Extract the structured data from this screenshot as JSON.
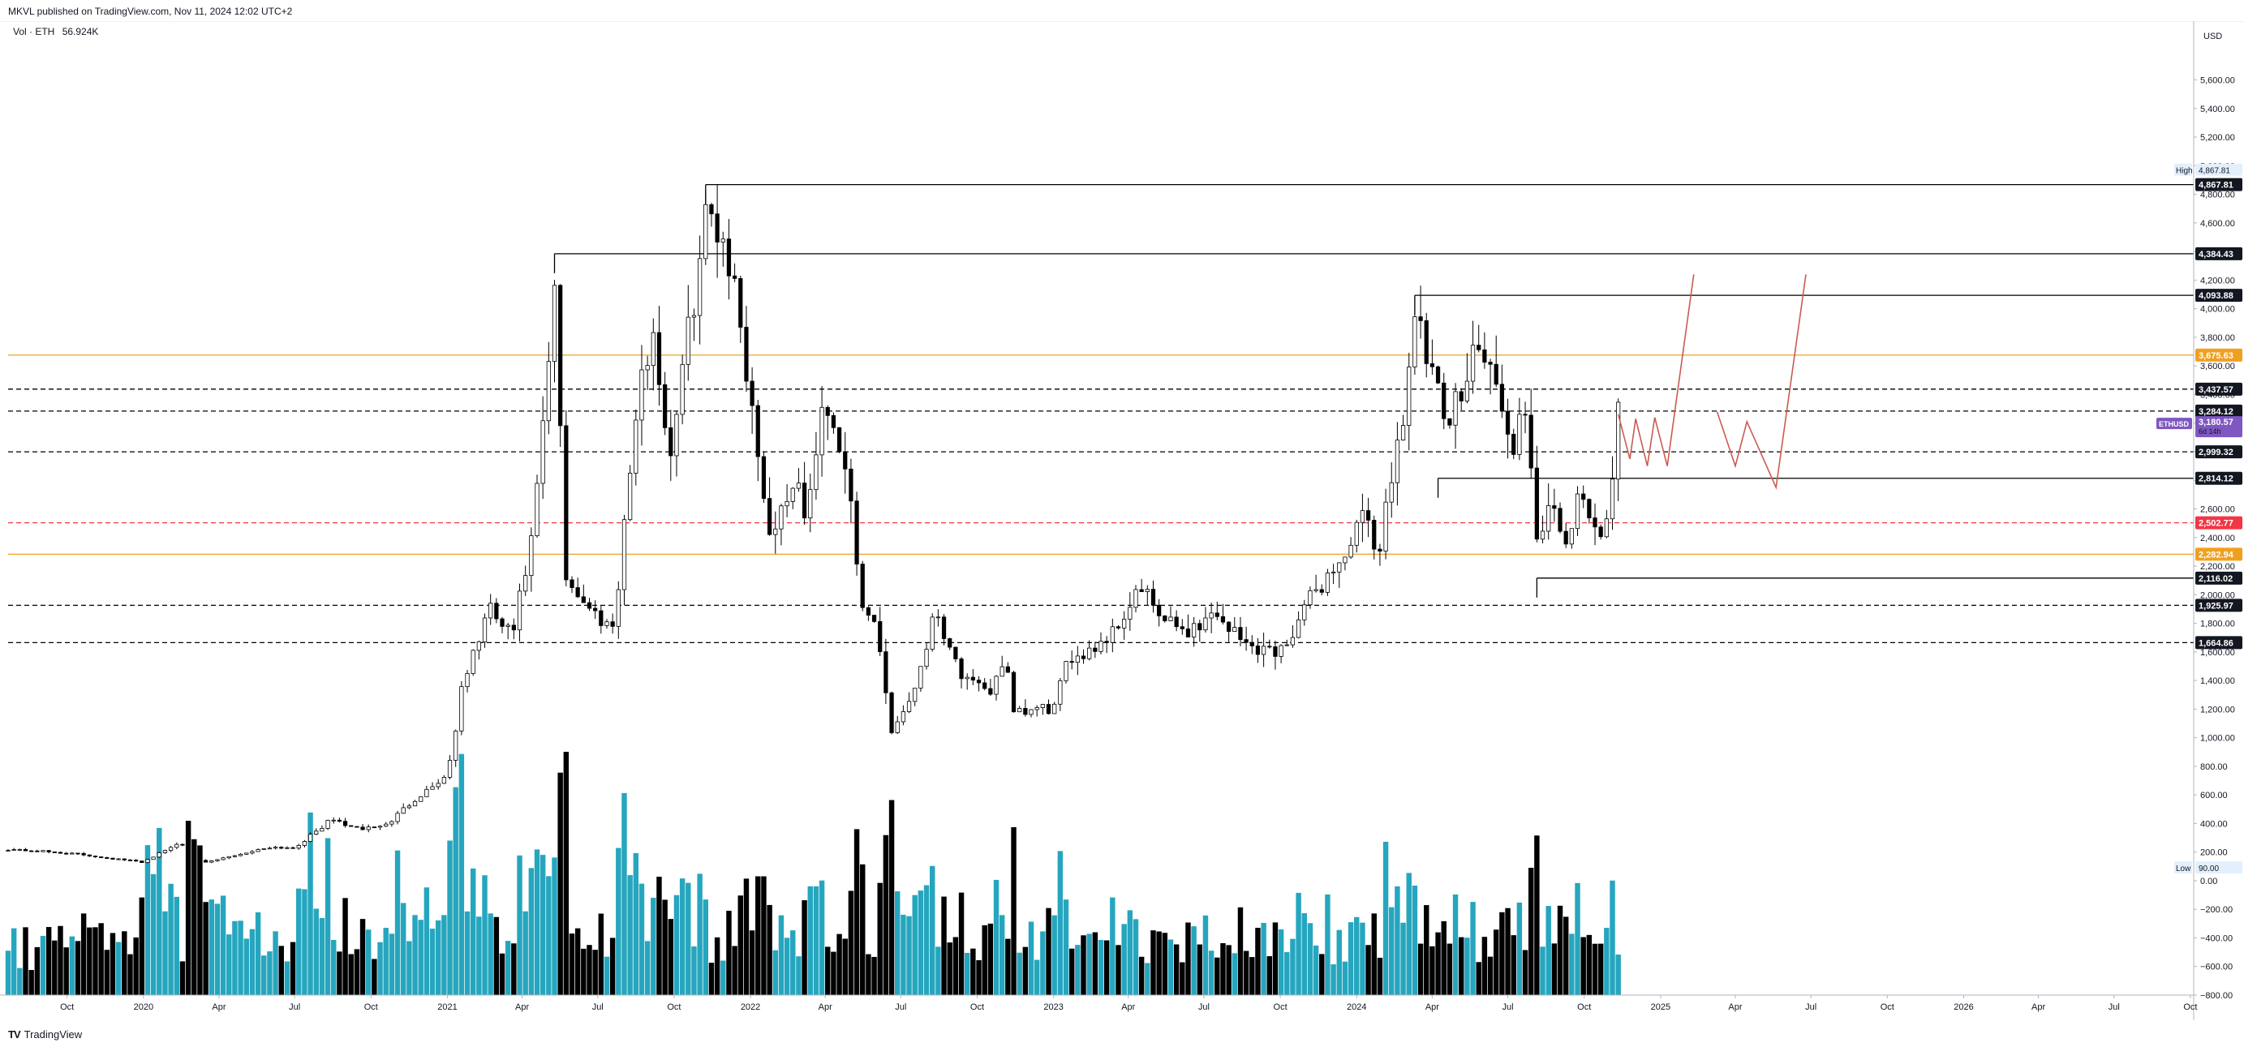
{
  "header": {
    "publish_text": "MKVL published on TradingView.com, Nov 11, 2024 12:02 UTC+2"
  },
  "legend": {
    "label": "Vol · ETH",
    "value": "56.924K"
  },
  "footer": {
    "brand": "TradingView"
  },
  "chart_data": {
    "type": "candlestick",
    "symbol": "ETHUSD",
    "interval_countdown": "6d 14h",
    "currency": "USD",
    "yaxis": {
      "ylim": [
        -800,
        6000
      ],
      "ticks": [
        -800,
        -600,
        -400,
        -200,
        0,
        200,
        400,
        600,
        800,
        1000,
        1200,
        1400,
        1600,
        1800,
        2000,
        2200,
        2400,
        2600,
        2800,
        3000,
        3200,
        3400,
        3600,
        3800,
        4000,
        4200,
        4400,
        4600,
        4800,
        5000,
        5200,
        5400,
        5600
      ],
      "tick_labels": [
        "−800.00",
        "−600.00",
        "−400.00",
        "−200.00",
        "0.00",
        "200.00",
        "400.00",
        "600.00",
        "800.00",
        "1,000.00",
        "1,200.00",
        "1,400.00",
        "1,600.00",
        "1,800.00",
        "2,000.00",
        "2,200.00",
        "2,400.00",
        "2,600.00",
        "2,800.00",
        "3,000.00",
        "3,200.00",
        "3,400.00",
        "3,600.00",
        "3,800.00",
        "4,000.00",
        "4,200.00",
        "4,400.00",
        "4,600.00",
        "4,800.00",
        "5,000.00",
        "5,200.00",
        "5,400.00",
        "5,600.00"
      ]
    },
    "xaxis": {
      "ticks": [
        {
          "date": "2019-10-01",
          "label": "Oct"
        },
        {
          "date": "2020-01-01",
          "label": "2020"
        },
        {
          "date": "2020-04-01",
          "label": "Apr"
        },
        {
          "date": "2020-07-01",
          "label": "Jul"
        },
        {
          "date": "2020-10-01",
          "label": "Oct"
        },
        {
          "date": "2021-01-01",
          "label": "2021"
        },
        {
          "date": "2021-04-01",
          "label": "Apr"
        },
        {
          "date": "2021-07-01",
          "label": "Jul"
        },
        {
          "date": "2021-10-01",
          "label": "Oct"
        },
        {
          "date": "2022-01-01",
          "label": "2022"
        },
        {
          "date": "2022-04-01",
          "label": "Apr"
        },
        {
          "date": "2022-07-01",
          "label": "Jul"
        },
        {
          "date": "2022-10-01",
          "label": "Oct"
        },
        {
          "date": "2023-01-01",
          "label": "2023"
        },
        {
          "date": "2023-04-01",
          "label": "Apr"
        },
        {
          "date": "2023-07-01",
          "label": "Jul"
        },
        {
          "date": "2023-10-01",
          "label": "Oct"
        },
        {
          "date": "2024-01-01",
          "label": "2024"
        },
        {
          "date": "2024-04-01",
          "label": "Apr"
        },
        {
          "date": "2024-07-01",
          "label": "Jul"
        },
        {
          "date": "2024-10-01",
          "label": "Oct"
        },
        {
          "date": "2025-01-01",
          "label": "2025"
        },
        {
          "date": "2025-04-01",
          "label": "Apr"
        },
        {
          "date": "2025-07-01",
          "label": "Jul"
        },
        {
          "date": "2025-10-01",
          "label": "Oct"
        },
        {
          "date": "2026-01-01",
          "label": "2026"
        },
        {
          "date": "2026-04-01",
          "label": "Apr"
        },
        {
          "date": "2026-07-01",
          "label": "Jul"
        },
        {
          "date": "2026-10-01",
          "label": "Oct"
        }
      ],
      "range_dates": [
        "2019-07-22",
        "2026-10-05"
      ]
    },
    "price_path": [
      [
        "2019-07-22",
        220
      ],
      [
        "2019-09-01",
        205
      ],
      [
        "2019-10-15",
        185
      ],
      [
        "2019-12-01",
        150
      ],
      [
        "2019-12-31",
        130
      ],
      [
        "2020-02-15",
        270
      ],
      [
        "2020-03-12",
        120
      ],
      [
        "2020-04-15",
        170
      ],
      [
        "2020-06-01",
        235
      ],
      [
        "2020-07-01",
        230
      ],
      [
        "2020-08-15",
        430
      ],
      [
        "2020-09-15",
        360
      ],
      [
        "2020-10-20",
        390
      ],
      [
        "2020-11-20",
        560
      ],
      [
        "2021-01-01",
        740
      ],
      [
        "2021-01-20",
        1380
      ],
      [
        "2021-02-20",
        1900
      ],
      [
        "2021-03-20",
        1700
      ],
      [
        "2021-04-15",
        2450
      ],
      [
        "2021-05-12",
        4200
      ],
      [
        "2021-05-22",
        2150
      ],
      [
        "2021-06-20",
        1900
      ],
      [
        "2021-07-20",
        1780
      ],
      [
        "2021-08-15",
        3200
      ],
      [
        "2021-09-05",
        3900
      ],
      [
        "2021-09-25",
        2950
      ],
      [
        "2021-10-20",
        3900
      ],
      [
        "2021-11-10",
        4700
      ],
      [
        "2021-12-01",
        4500
      ],
      [
        "2021-12-20",
        3900
      ],
      [
        "2022-01-10",
        3000
      ],
      [
        "2022-01-25",
        2400
      ],
      [
        "2022-02-20",
        2800
      ],
      [
        "2022-03-10",
        2550
      ],
      [
        "2022-04-01",
        3400
      ],
      [
        "2022-05-01",
        2800
      ],
      [
        "2022-05-12",
        1900
      ],
      [
        "2022-06-01",
        1800
      ],
      [
        "2022-06-20",
        1050
      ],
      [
        "2022-07-15",
        1300
      ],
      [
        "2022-08-12",
        1900
      ],
      [
        "2022-09-15",
        1400
      ],
      [
        "2022-10-15",
        1300
      ],
      [
        "2022-11-05",
        1600
      ],
      [
        "2022-11-10",
        1150
      ],
      [
        "2022-12-15",
        1200
      ],
      [
        "2023-01-01",
        1200
      ],
      [
        "2023-01-20",
        1560
      ],
      [
        "2023-02-20",
        1640
      ],
      [
        "2023-03-15",
        1750
      ],
      [
        "2023-04-15",
        2050
      ],
      [
        "2023-05-15",
        1800
      ],
      [
        "2023-06-15",
        1750
      ],
      [
        "2023-07-15",
        1880
      ],
      [
        "2023-08-20",
        1650
      ],
      [
        "2023-09-15",
        1620
      ],
      [
        "2023-10-01",
        1600
      ],
      [
        "2023-10-25",
        1850
      ],
      [
        "2023-11-15",
        2050
      ],
      [
        "2023-12-15",
        2250
      ],
      [
        "2024-01-10",
        2550
      ],
      [
        "2024-01-25",
        2250
      ],
      [
        "2024-02-25",
        3250
      ],
      [
        "2024-03-12",
        3950
      ],
      [
        "2024-04-01",
        3500
      ],
      [
        "2024-04-20",
        3150
      ],
      [
        "2024-05-20",
        3750
      ],
      [
        "2024-06-10",
        3600
      ],
      [
        "2024-07-05",
        3000
      ],
      [
        "2024-07-20",
        3300
      ],
      [
        "2024-08-05",
        2400
      ],
      [
        "2024-08-20",
        2650
      ],
      [
        "2024-09-05",
        2300
      ],
      [
        "2024-09-25",
        2650
      ],
      [
        "2024-10-15",
        2500
      ],
      [
        "2024-10-30",
        2450
      ],
      [
        "2024-11-11",
        3250
      ]
    ],
    "volume_series": {
      "unit": "ETH",
      "latest": "56.924K",
      "colors": {
        "up": "#26a6be",
        "down": "#000000"
      }
    },
    "horizontal_levels": [
      {
        "price": 4867.81,
        "label": "4,867.81",
        "style": "solid",
        "color": "#000000",
        "start": "2021-11-08"
      },
      {
        "price": 4384.43,
        "label": "4,384.43",
        "style": "solid",
        "color": "#000000",
        "start": "2021-05-10"
      },
      {
        "price": 4093.88,
        "label": "4,093.88",
        "style": "solid",
        "color": "#000000",
        "start": "2024-03-11"
      },
      {
        "price": 3675.63,
        "label": "3,675.63",
        "style": "solid",
        "color": "#f0a020",
        "start": "2019-07-22"
      },
      {
        "price": 3437.57,
        "label": "3,437.57",
        "style": "dashed",
        "color": "#000000",
        "start": "2019-07-22"
      },
      {
        "price": 3284.12,
        "label": "3,284.12",
        "style": "dashed",
        "color": "#000000",
        "start": "2019-07-22"
      },
      {
        "price": 2999.32,
        "label": "2,999.32",
        "style": "dashed",
        "color": "#000000",
        "start": "2019-07-22"
      },
      {
        "price": 2814.12,
        "label": "2,814.12",
        "style": "solid",
        "color": "#000000",
        "start": "2024-04-08"
      },
      {
        "price": 2502.77,
        "label": "2,502.77",
        "style": "dashed",
        "color": "#f23645",
        "start": "2019-07-22"
      },
      {
        "price": 2282.94,
        "label": "2,282.94",
        "style": "solid",
        "color": "#f0a020",
        "start": "2019-07-22"
      },
      {
        "price": 2116.02,
        "label": "2,116.02",
        "style": "solid",
        "color": "#000000",
        "start": "2024-08-05"
      },
      {
        "price": 1925.97,
        "label": "1,925.97",
        "style": "dashed",
        "color": "#000000",
        "start": "2019-07-22"
      },
      {
        "price": 1664.86,
        "label": "1,664.86",
        "style": "dashed",
        "color": "#000000",
        "start": "2019-07-22"
      }
    ],
    "current_price": {
      "label": "3,180.57",
      "value": 3180.57,
      "color": "#7e57c2"
    },
    "high_marker": {
      "title": "High",
      "label": "4,867.81",
      "value": 4867.81
    },
    "low_marker": {
      "title": "Low",
      "label": "90.00",
      "value": 90.0
    },
    "projections": [
      {
        "color": "#c95b52",
        "points": [
          [
            "2024-11-11",
            3260
          ],
          [
            "2024-11-25",
            2950
          ],
          [
            "2024-12-02",
            3230
          ],
          [
            "2024-12-16",
            2900
          ],
          [
            "2024-12-25",
            3240
          ],
          [
            "2025-01-09",
            2900
          ],
          [
            "2025-02-10",
            4240
          ]
        ]
      },
      {
        "color": "#c95b52",
        "points": [
          [
            "2025-03-10",
            3280
          ],
          [
            "2025-04-01",
            2900
          ],
          [
            "2025-04-15",
            3210
          ],
          [
            "2025-05-20",
            2750
          ],
          [
            "2025-06-25",
            4240
          ]
        ]
      }
    ],
    "colors": {
      "grid_axis": "#e0e3eb",
      "candle_up": "#ffffff",
      "candle_down": "#000000",
      "wick": "#000000"
    }
  }
}
